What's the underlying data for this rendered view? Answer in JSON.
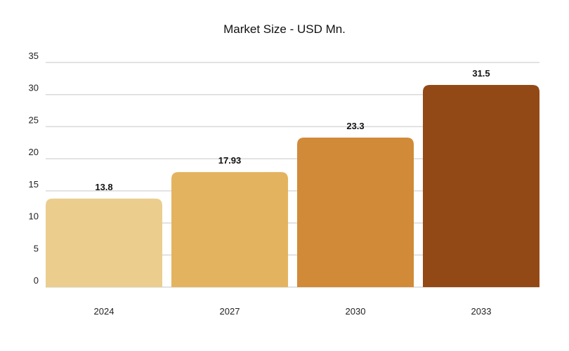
{
  "chart_data": {
    "type": "bar",
    "title": "Market Size - USD Mn.",
    "categories": [
      "2024",
      "2027",
      "2030",
      "2033"
    ],
    "values": [
      13.8,
      17.93,
      23.3,
      31.5
    ],
    "data_labels": [
      "13.8",
      "17.93",
      "23.3",
      "31.5"
    ],
    "colors": [
      "#EBCD8D",
      "#E4B35F",
      "#D08A38",
      "#934916"
    ],
    "ylim": [
      0,
      35
    ],
    "yticks": [
      "0",
      "5",
      "10",
      "15",
      "20",
      "25",
      "30",
      "35"
    ],
    "grid": true,
    "xlabel": "",
    "ylabel": ""
  }
}
